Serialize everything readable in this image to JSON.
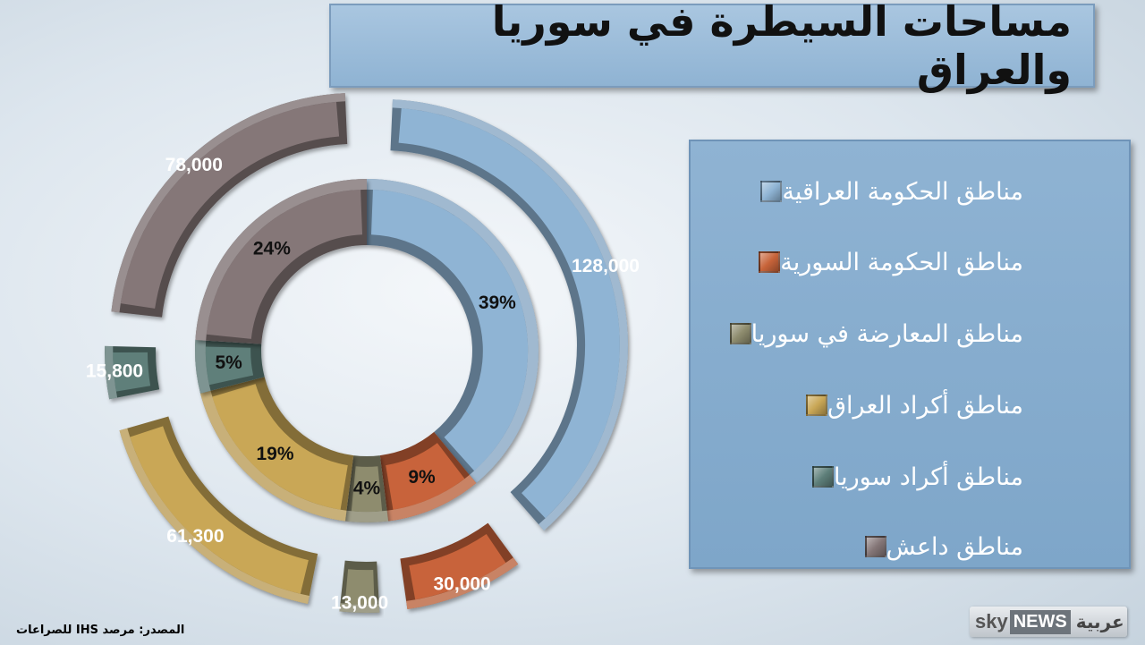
{
  "title": "مساحات السيطرة في سوريا والعراق",
  "legend": [
    {
      "label": "مناطق الحكومة  العراقية",
      "color": "#8fb4d4"
    },
    {
      "label": "مناطق  الحكومة السورية",
      "color": "#c8643a"
    },
    {
      "label": "مناطق المعارضة في سوريا",
      "color": "#8e8c6e"
    },
    {
      "label": "مناطق أكراد العراق",
      "color": "#c9a756"
    },
    {
      "label": "مناطق أكراد سوريا",
      "color": "#5e7f7a"
    },
    {
      "label": "مناطق داعش",
      "color": "#857778"
    }
  ],
  "source": "المصدر: مرصد IHS  للصراعات",
  "logo": {
    "sky": "sky",
    "news": "NEWS",
    "arabic": "عربية"
  },
  "chart_data": {
    "type": "pie",
    "categories": [
      "مناطق الحكومة  العراقية",
      "مناطق  الحكومة السورية",
      "مناطق المعارضة في سوريا",
      "مناطق أكراد العراق",
      "مناطق أكراد سوريا",
      "مناطق داعش"
    ],
    "series": [
      {
        "values": [
          39,
          9,
          4,
          19,
          5,
          24
        ]
      },
      {
        "values": [
          128000,
          30000,
          13000,
          61300,
          15800,
          78000
        ]
      }
    ],
    "percent_labels": [
      "39%",
      "9%",
      "4%",
      "19%",
      "5%",
      "24%"
    ],
    "value_labels": [
      "128,000",
      "30,000",
      "13,000",
      "61,300",
      "15,800",
      "78,000"
    ]
  }
}
